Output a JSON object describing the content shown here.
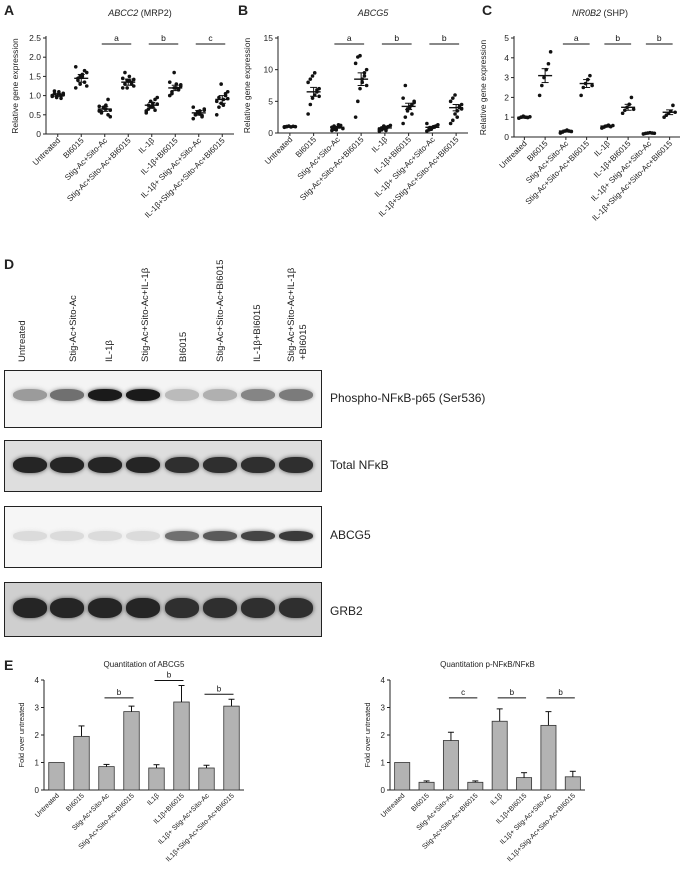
{
  "panels": {
    "A": {
      "letter": "A",
      "title_gene": "ABCC2",
      "title_rest": " (MRP2)",
      "ylabel": "Relative gene expression",
      "ylim": [
        0,
        2.5
      ],
      "yticks": [
        "0",
        "0.5",
        "1.0",
        "1.5",
        "2.0",
        "2.5"
      ],
      "ytick_values": [
        0,
        0.5,
        1.0,
        1.5,
        2.0,
        2.5
      ],
      "categories": [
        "Untreated",
        "BI6015",
        "Stig-Ac+Sito-Ac",
        "Stig-Ac+Sito-Ac+BI6015",
        "IL-1β",
        "IL-1β+BI6015",
        "IL-1β+ Stig-Ac+Sito-Ac",
        "IL-1β+Stig-Ac+Sito-Ac+BI6015"
      ],
      "sig_labels": [
        "a",
        "b",
        "c"
      ]
    },
    "B": {
      "letter": "B",
      "title_gene": "ABCG5",
      "title_rest": "",
      "ylabel": "Relative gene expression",
      "ylim": [
        0,
        15
      ],
      "yticks": [
        "0",
        "5",
        "10",
        "15"
      ],
      "ytick_values": [
        0,
        5,
        10,
        15
      ],
      "categories": [
        "Untreated",
        "BI6015",
        "Stig-Ac+Sito-Ac",
        "Stig-Ac+Sito-Ac+BI6015",
        "IL-1β",
        "IL-1β+BI6015",
        "IL-1β+ Stig-Ac+Sito-Ac",
        "IL-1β+Stig-Ac+Sito-Ac+BI6015"
      ],
      "sig_labels": [
        "a",
        "b",
        "b"
      ]
    },
    "C": {
      "letter": "C",
      "title_gene": "NR0B2",
      "title_rest": " (SHP)",
      "ylabel": "Relative gene expression",
      "ylim": [
        0,
        5
      ],
      "yticks": [
        "0",
        "1",
        "2",
        "3",
        "4",
        "5"
      ],
      "ytick_values": [
        0,
        1,
        2,
        3,
        4,
        5
      ],
      "categories": [
        "Untreated",
        "BI6015",
        "Stig-Ac+Sito-Ac",
        "Stig-Ac+Sito-Ac+BI6015",
        "IL-1β",
        "IL-1β+BI6015",
        "IL-1β+ Stig-Ac+Sito-Ac",
        "IL-1β+Stig-Ac+Sito-Ac+BI6015"
      ],
      "sig_labels": [
        "a",
        "b",
        "b"
      ]
    },
    "D": {
      "letter": "D",
      "lanes": [
        "Untreated",
        "Stig-Ac+Sito-Ac",
        "IL-1β",
        "Stig-Ac+Sito-Ac+IL-1β",
        "BI6015",
        "Stig-Ac+Sito-Ac+BI6015",
        "IL-1β+BI6015",
        "Stig-Ac+Sito-Ac+IL-1β",
        "+BI6015"
      ],
      "blots": [
        "Phospho-NFκB-p65 (Ser536)",
        "Total NFκB",
        "ABCG5",
        "GRB2"
      ],
      "band_intensity": {
        "phospho": [
          0.35,
          0.55,
          0.95,
          0.95,
          0.2,
          0.25,
          0.45,
          0.5
        ],
        "total": [
          0.9,
          0.9,
          0.9,
          0.9,
          0.85,
          0.85,
          0.85,
          0.85
        ],
        "abcg5": [
          0.05,
          0.05,
          0.05,
          0.05,
          0.55,
          0.65,
          0.75,
          0.8
        ],
        "grb2": [
          0.9,
          0.9,
          0.9,
          0.9,
          0.85,
          0.85,
          0.85,
          0.85
        ]
      }
    },
    "E": {
      "letter": "E",
      "left_title": "Quantitation of ABCG5",
      "right_title": "Quantitation p-NFκB/NFκB",
      "ylabel": "Fold over untreated"
    }
  },
  "chart_data": [
    {
      "type": "scatter",
      "title": "ABCC2 (MRP2)",
      "ylabel": "Relative gene expression",
      "ylim": [
        0,
        2.5
      ],
      "categories": [
        "Untreated",
        "BI6015",
        "Stig-Ac+Sito-Ac",
        "Stig-Ac+Sito-Ac+BI6015",
        "IL-1β",
        "IL-1β+BI6015",
        "IL-1β+ Stig-Ac+Sito-Ac",
        "IL-1β+Stig-Ac+Sito-Ac+BI6015"
      ],
      "means": [
        1.02,
        1.45,
        0.65,
        1.35,
        0.75,
        1.2,
        0.55,
        0.9
      ],
      "sem": [
        0.04,
        0.1,
        0.06,
        0.08,
        0.07,
        0.07,
        0.06,
        0.1
      ],
      "points": [
        [
          1.0,
          1.05,
          0.95,
          1.1,
          1.0,
          1.02,
          0.98,
          1.12,
          0.97,
          1.04,
          0.93,
          1.06
        ],
        [
          1.2,
          1.4,
          1.5,
          1.55,
          1.35,
          1.6,
          1.75,
          1.45,
          1.3,
          1.5,
          1.65,
          1.25
        ],
        [
          0.6,
          0.55,
          0.7,
          0.65,
          0.5,
          0.62,
          0.72,
          0.58,
          0.68,
          0.75,
          0.9,
          0.45
        ],
        [
          1.2,
          1.3,
          1.4,
          1.5,
          1.35,
          1.25,
          1.45,
          1.6,
          1.2,
          1.38,
          1.3,
          1.42
        ],
        [
          0.55,
          0.65,
          0.7,
          0.8,
          0.9,
          0.95,
          0.6,
          0.75,
          0.85,
          0.7,
          0.62,
          0.78
        ],
        [
          1.0,
          1.1,
          1.2,
          1.3,
          1.15,
          1.25,
          1.35,
          1.05,
          1.6,
          1.2,
          1.18,
          1.28
        ],
        [
          0.4,
          0.5,
          0.55,
          0.6,
          0.45,
          0.65,
          0.7,
          0.5,
          0.58,
          0.52,
          0.48,
          0.62
        ],
        [
          0.5,
          0.7,
          0.8,
          0.9,
          1.0,
          1.1,
          0.85,
          0.95,
          1.3,
          0.75,
          1.05,
          0.92
        ]
      ],
      "significance": [
        {
          "from": 2,
          "to": 3,
          "label": "a"
        },
        {
          "from": 4,
          "to": 5,
          "label": "b"
        },
        {
          "from": 6,
          "to": 7,
          "label": "c"
        }
      ]
    },
    {
      "type": "scatter",
      "title": "ABCG5",
      "ylabel": "Relative gene expression",
      "ylim": [
        0,
        15
      ],
      "categories": [
        "Untreated",
        "BI6015",
        "Stig-Ac+Sito-Ac",
        "Stig-Ac+Sito-Ac+BI6015",
        "IL-1β",
        "IL-1β+BI6015",
        "IL-1β+ Stig-Ac+Sito-Ac",
        "IL-1β+Stig-Ac+Sito-Ac+BI6015"
      ],
      "means": [
        1.0,
        6.5,
        0.9,
        8.5,
        0.8,
        4.2,
        0.9,
        4.0
      ],
      "sem": [
        0.1,
        0.7,
        0.15,
        1.0,
        0.15,
        0.5,
        0.15,
        0.5
      ],
      "points": [
        [
          0.9,
          1.0,
          1.1,
          0.95,
          1.05,
          1.0,
          0.98,
          1.02
        ],
        [
          3.0,
          4.5,
          5.5,
          6.0,
          6.5,
          7.0,
          8.0,
          8.5,
          9.0,
          9.5,
          6.8,
          5.8
        ],
        [
          0.4,
          0.6,
          0.8,
          1.0,
          1.2,
          0.7,
          0.9,
          1.1,
          0.5,
          1.3
        ],
        [
          2.5,
          5.0,
          7.0,
          8.0,
          9.0,
          10.0,
          11.0,
          12.0,
          12.2,
          8.5,
          9.5,
          7.5
        ],
        [
          0.3,
          0.5,
          0.7,
          0.9,
          1.0,
          1.2,
          0.6,
          0.8,
          1.1,
          0.4
        ],
        [
          1.5,
          2.5,
          3.5,
          4.0,
          4.5,
          5.0,
          5.5,
          7.5,
          3.8,
          4.2,
          3.0,
          4.8
        ],
        [
          0.3,
          0.5,
          0.7,
          0.9,
          1.1,
          1.3,
          1.5,
          0.8,
          0.6,
          1.0
        ],
        [
          1.5,
          2.0,
          3.0,
          3.5,
          4.0,
          4.5,
          5.0,
          5.5,
          6.0,
          2.5,
          4.2,
          3.8
        ]
      ],
      "significance": [
        {
          "from": 2,
          "to": 3,
          "label": "a"
        },
        {
          "from": 4,
          "to": 5,
          "label": "b"
        },
        {
          "from": 6,
          "to": 7,
          "label": "b"
        }
      ]
    },
    {
      "type": "scatter",
      "title": "NR0B2 (SHP)",
      "ylabel": "Relative gene expression",
      "ylim": [
        0,
        5
      ],
      "categories": [
        "Untreated",
        "BI6015",
        "Stig-Ac+Sito-Ac",
        "Stig-Ac+Sito-Ac+BI6015",
        "IL-1β",
        "IL-1β+BI6015",
        "IL-1β+ Stig-Ac+Sito-Ac",
        "IL-1β+Stig-Ac+Sito-Ac+BI6015"
      ],
      "means": [
        1.0,
        3.1,
        0.3,
        2.7,
        0.55,
        1.5,
        0.2,
        1.25
      ],
      "sem": [
        0.05,
        0.35,
        0.05,
        0.2,
        0.05,
        0.15,
        0.03,
        0.12
      ],
      "points": [
        [
          0.95,
          1.0,
          1.05,
          1.0,
          0.98,
          1.02
        ],
        [
          2.1,
          2.6,
          3.0,
          3.4,
          3.7,
          4.3
        ],
        [
          0.2,
          0.25,
          0.3,
          0.35,
          0.3,
          0.28
        ],
        [
          2.1,
          2.5,
          2.7,
          2.9,
          3.1,
          2.6
        ],
        [
          0.45,
          0.5,
          0.55,
          0.6,
          0.52,
          0.58
        ],
        [
          1.2,
          1.35,
          1.5,
          1.65,
          2.0,
          1.4
        ],
        [
          0.15,
          0.18,
          0.2,
          0.22,
          0.2,
          0.19
        ],
        [
          1.0,
          1.1,
          1.2,
          1.3,
          1.6,
          1.25
        ]
      ],
      "significance": [
        {
          "from": 2,
          "to": 3,
          "label": "a"
        },
        {
          "from": 4,
          "to": 5,
          "label": "b"
        },
        {
          "from": 6,
          "to": 7,
          "label": "b"
        }
      ]
    },
    {
      "type": "bar",
      "title": "Quantitation of ABCG5",
      "ylabel": "Fold over untreated",
      "ylim": [
        0,
        4
      ],
      "categories": [
        "Untreated",
        "BI6015",
        "Stig-Ac+Sito-Ac",
        "Stig-Ac+Sito-Ac+BI6015",
        "IL1β",
        "IL1β+BI6015",
        "IL1β+ Stig-Ac+Sito-Ac",
        "IL1β+Stig-Ac+Sito-Ac+BI6015"
      ],
      "values": [
        1.0,
        1.95,
        0.85,
        2.85,
        0.8,
        3.2,
        0.8,
        3.05
      ],
      "errors": [
        0.0,
        0.38,
        0.08,
        0.2,
        0.12,
        0.6,
        0.1,
        0.25
      ],
      "significance": [
        {
          "from": 2,
          "to": 3,
          "label": "b"
        },
        {
          "from": 4,
          "to": 5,
          "label": "b"
        },
        {
          "from": 6,
          "to": 7,
          "label": "b"
        }
      ]
    },
    {
      "type": "bar",
      "title": "Quantitation p-NFκB/NFκB",
      "ylabel": "Fold over untreated",
      "ylim": [
        0,
        4
      ],
      "categories": [
        "Untreated",
        "BI6015",
        "Stig-Ac+Sito-Ac",
        "Stig-Ac+Sito-Ac+BI6015",
        "IL1β",
        "IL1β+BI6015",
        "IL1β+ Stig-Ac+Sito-Ac",
        "IL1β+Stig-Ac+Sito-Ac+BI6015"
      ],
      "values": [
        1.0,
        0.28,
        1.8,
        0.28,
        2.5,
        0.45,
        2.35,
        0.48
      ],
      "errors": [
        0.0,
        0.05,
        0.3,
        0.05,
        0.45,
        0.18,
        0.5,
        0.2
      ],
      "significance": [
        {
          "from": 2,
          "to": 3,
          "label": "c"
        },
        {
          "from": 4,
          "to": 5,
          "label": "b"
        },
        {
          "from": 6,
          "to": 7,
          "label": "b"
        }
      ]
    }
  ]
}
